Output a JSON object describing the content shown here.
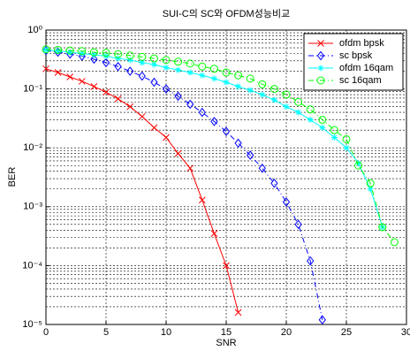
{
  "chart_data": {
    "type": "line",
    "title": "SUI-C의 SC와 OFDM성능비교",
    "x_label": "SNR",
    "y_label": "BER",
    "xlim": [
      0,
      30
    ],
    "xticks": [
      0,
      5,
      10,
      15,
      20,
      25,
      30
    ],
    "ylim": [
      1e-05,
      1
    ],
    "y_scale": "log",
    "yticks": [
      {
        "value": 1e-05,
        "label": "10⁻⁵"
      },
      {
        "value": 0.0001,
        "label": "10⁻⁴"
      },
      {
        "value": 0.001,
        "label": "10⁻³"
      },
      {
        "value": 0.01,
        "label": "10⁻²"
      },
      {
        "value": 0.1,
        "label": "10⁻¹"
      },
      {
        "value": 1,
        "label": "10⁰"
      }
    ],
    "grid": true,
    "legend": "upper right",
    "series": [
      {
        "name": "ofdm bpsk",
        "color": "#ff0000",
        "marker": "x",
        "dash": "solid",
        "x": [
          0,
          1,
          2,
          3,
          4,
          5,
          6,
          7,
          8,
          9,
          10,
          11,
          12,
          13,
          14,
          15,
          16
        ],
        "values": [
          0.22,
          0.19,
          0.16,
          0.135,
          0.11,
          0.088,
          0.068,
          0.05,
          0.034,
          0.022,
          0.015,
          0.008,
          0.0045,
          0.0013,
          0.00035,
          0.0001,
          1.6e-05
        ]
      },
      {
        "name": "sc bpsk",
        "color": "#0000ff",
        "marker": "diamond",
        "dash": "dashdot",
        "x": [
          0,
          1,
          2,
          3,
          4,
          5,
          6,
          7,
          8,
          9,
          10,
          11,
          12,
          13,
          14,
          15,
          16,
          17,
          18,
          19,
          20,
          21,
          22,
          23
        ],
        "values": [
          0.45,
          0.42,
          0.39,
          0.36,
          0.32,
          0.28,
          0.24,
          0.2,
          0.165,
          0.13,
          0.1,
          0.075,
          0.055,
          0.04,
          0.028,
          0.019,
          0.012,
          0.0075,
          0.0045,
          0.0025,
          0.0012,
          0.0005,
          0.00012,
          1.2e-05
        ]
      },
      {
        "name": "ofdm 16qam",
        "color": "#00ffff",
        "marker": "asterisk",
        "dash": "solid",
        "x": [
          0,
          1,
          2,
          3,
          4,
          5,
          6,
          7,
          8,
          9,
          10,
          11,
          12,
          13,
          14,
          15,
          16,
          17,
          18,
          19,
          20,
          21,
          22,
          23,
          24,
          25,
          26,
          27,
          28
        ],
        "values": [
          0.46,
          0.44,
          0.42,
          0.4,
          0.38,
          0.36,
          0.33,
          0.31,
          0.28,
          0.26,
          0.23,
          0.21,
          0.19,
          0.17,
          0.15,
          0.13,
          0.11,
          0.095,
          0.08,
          0.065,
          0.05,
          0.04,
          0.03,
          0.022,
          0.015,
          0.01,
          0.0055,
          0.002,
          0.00045
        ]
      },
      {
        "name": "sc 16qam",
        "color": "#00ff00",
        "marker": "circle",
        "dash": "dashdot",
        "x": [
          0,
          1,
          2,
          3,
          4,
          5,
          6,
          7,
          8,
          9,
          10,
          11,
          12,
          13,
          14,
          15,
          16,
          17,
          18,
          19,
          20,
          21,
          22,
          23,
          24,
          25,
          26,
          27,
          28,
          29
        ],
        "values": [
          0.47,
          0.46,
          0.45,
          0.44,
          0.42,
          0.41,
          0.39,
          0.37,
          0.35,
          0.33,
          0.31,
          0.29,
          0.27,
          0.24,
          0.22,
          0.19,
          0.17,
          0.15,
          0.12,
          0.1,
          0.08,
          0.06,
          0.045,
          0.03,
          0.02,
          0.014,
          0.005,
          0.0025,
          0.00045,
          0.00025
        ]
      }
    ]
  }
}
